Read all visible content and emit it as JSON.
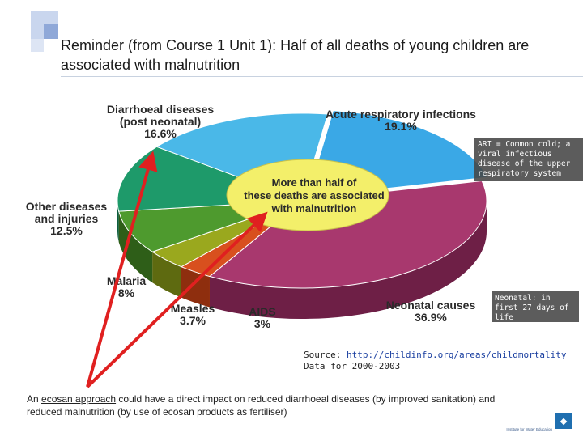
{
  "slide": {
    "title": "Reminder (from Course 1 Unit 1): Half of all deaths of young children are associated with malnutrition",
    "ari_note": "ARI = Common cold; a viral infectious disease of the upper respiratory system",
    "neonatal_note": "Neonatal: in first 27 days of life",
    "source_prefix": "Source: ",
    "source_link": "http://childinfo.org/areas/childmortality",
    "source_period": "Data for 2000-2003",
    "bottom_pre": "An ",
    "bottom_link": "ecosan approach",
    "bottom_post": " could have a direct impact on reduced diarrhoeal diseases (by improved sanitation) and reduced malnutrition (by use of ecosan products as fertiliser)",
    "logo_text": "Institute for Water Education"
  },
  "colors": {
    "accent_square_dark": "#8fa8d8",
    "accent_square_light": "#c9d6ee",
    "arrow": "#e02020",
    "center_ellipse": "#f3ef6a"
  },
  "chart_data": {
    "type": "pie",
    "title": "",
    "center_label": "More than half of these deaths are associated with malnutrition",
    "slices": [
      {
        "label": "Acute respiratory infections",
        "value": 19.1,
        "value_label": "19.1%",
        "color": "#3aa8e6",
        "side": "#1f6e9e"
      },
      {
        "label": "Neonatal causes",
        "value": 36.9,
        "value_label": "36.9%",
        "color": "#a8386e",
        "side": "#6e1f46"
      },
      {
        "label": "AIDS",
        "value": 3,
        "value_label": "3%",
        "color": "#d8501e",
        "side": "#8e2e0e"
      },
      {
        "label": "Measles",
        "value": 3.7,
        "value_label": "3.7%",
        "color": "#9aa81e",
        "side": "#5e6a10"
      },
      {
        "label": "Malaria",
        "value": 8,
        "value_label": "8%",
        "color": "#4e9a2e",
        "side": "#2e5e18"
      },
      {
        "label": "Other diseases and injuries",
        "value": 12.5,
        "value_label": "12.5%",
        "color": "#1e9a6a",
        "side": "#0e5e3e"
      },
      {
        "label": "Diarrhoeal diseases (post neonatal)",
        "value": 16.6,
        "value_label": "16.6%",
        "color": "#4ab8e8",
        "side": "#24709a"
      }
    ]
  }
}
